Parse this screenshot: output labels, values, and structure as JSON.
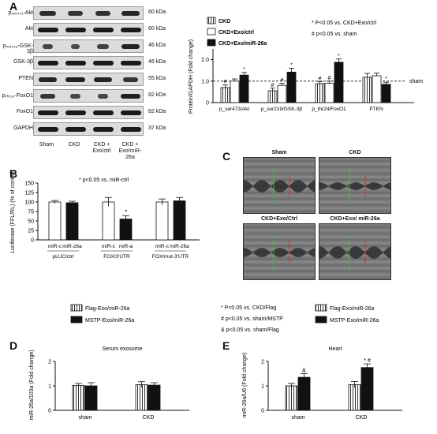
{
  "panel_labels": {
    "a": "A",
    "b": "B",
    "c": "C",
    "d": "D",
    "e": "E"
  },
  "western_blot": {
    "rows": [
      {
        "label": "pₛₑᵣ₄₇₃-Akt",
        "kda": "60 kDa"
      },
      {
        "label": "Akt",
        "kda": "60 kDa"
      },
      {
        "label": "pₛₑᵣ₂₁₉-GSK-3β",
        "kda": "46 kDa"
      },
      {
        "label": "GSK-3β",
        "kda": "46 kDa"
      },
      {
        "label": "PTEN",
        "kda": "55 kDa"
      },
      {
        "label": "pₜₕᵣ₂₄-FoxO1",
        "kda": "82 kDa"
      },
      {
        "label": "FoxO1",
        "kda": "82 kDa"
      },
      {
        "label": "GAPDH",
        "kda": "37 kDa"
      }
    ],
    "lanes": [
      "Sham",
      "CKD",
      "CKD + Exo/ctrl",
      "CKD + Exo/miR-26a"
    ]
  },
  "chart_data": [
    {
      "id": "A-bar",
      "type": "bar",
      "ylabel": "Protein/GAPDH (Fold change)",
      "ylim": [
        0,
        2.5
      ],
      "yticks": [
        "0",
        "1.0",
        "2.0"
      ],
      "categories": [
        "p_ser473/Akt",
        "p_ser219/GSK-3β",
        "p_thr24/FoxO1",
        "PTEN"
      ],
      "series": [
        {
          "name": "CKD",
          "fill": "hatched",
          "values": [
            0.7,
            0.55,
            0.88,
            1.18
          ],
          "err": [
            0.12,
            0.12,
            0.1,
            0.18
          ]
        },
        {
          "name": "CKD+Exo/ctrl",
          "fill": "white",
          "values": [
            1.0,
            0.8,
            0.9,
            1.25
          ],
          "err": [
            0.1,
            0.1,
            0.1,
            0.12
          ]
        },
        {
          "name": "CKD+Exo/miR-26a",
          "fill": "black",
          "values": [
            1.28,
            1.42,
            1.88,
            0.85
          ],
          "err": [
            0.12,
            0.18,
            0.15,
            0.1
          ]
        }
      ],
      "sham_line": 1.0,
      "sham_label": "sham",
      "marks": [
        [
          "#",
          "#",
          "#",
          ""
        ],
        [
          "",
          "#",
          "#",
          ""
        ],
        [
          "*",
          "*",
          "*",
          "*"
        ]
      ],
      "legend_notes": [
        "* P<0.05 vs. CKD+Exo/ctrl",
        "# p<0.05 vs. sham"
      ]
    },
    {
      "id": "B",
      "type": "bar",
      "ylabel": "Luciferase (FFL/RL) (% of control)",
      "ylim": [
        0,
        150
      ],
      "yticks": [
        "0",
        "25",
        "50",
        "75",
        "100",
        "125",
        "150"
      ],
      "groups": [
        "pLUC/ctrl",
        "FOX/3'UTR",
        "FOX/mut-3'UTR"
      ],
      "categories": [
        "miR-c",
        "miR-26a",
        "miR-c",
        "miR-a",
        "miR-c",
        "miR-26a"
      ],
      "values": [
        100,
        98,
        100,
        55,
        100,
        103
      ],
      "err": [
        4,
        4,
        12,
        9,
        8,
        9
      ],
      "fills": [
        "white",
        "black",
        "white",
        "black",
        "white",
        "black"
      ],
      "marks": [
        "",
        "",
        "",
        "*",
        "",
        ""
      ],
      "note": "* p<0.05 vs. miR-ctrl"
    },
    {
      "id": "D",
      "type": "bar",
      "title": "Serum exosome",
      "ylabel": "miR-26a/103a (Fold change)",
      "ylim": [
        0,
        2
      ],
      "yticks": [
        "0",
        "1",
        "2"
      ],
      "categories": [
        "sham",
        "CKD"
      ],
      "series": [
        {
          "name": "Flag-Exo/miR-26a",
          "fill": "white",
          "values": [
            1.02,
            1.05
          ],
          "err": [
            0.08,
            0.12
          ]
        },
        {
          "name": "MSTP-Exo/miR-26a",
          "fill": "black",
          "values": [
            1.0,
            1.03
          ],
          "err": [
            0.13,
            0.1
          ]
        }
      ]
    },
    {
      "id": "E",
      "type": "bar",
      "title": "Heart",
      "ylabel": "miR-26a/U6 (Fold change)",
      "ylim": [
        0,
        2
      ],
      "yticks": [
        "0",
        "1",
        "2"
      ],
      "categories": [
        "sham",
        "CKD"
      ],
      "series": [
        {
          "name": "Flag-Exo/miR-26a",
          "fill": "white",
          "values": [
            1.0,
            1.05
          ],
          "err": [
            0.1,
            0.13
          ]
        },
        {
          "name": "MSTP-Exo/miR-26a",
          "fill": "black",
          "values": [
            1.35,
            1.75
          ],
          "err": [
            0.15,
            0.15
          ]
        }
      ],
      "marks": [
        [
          "",
          ""
        ],
        [
          "&",
          "* #"
        ]
      ],
      "notes": [
        "* P<0.05 vs. CKD/Flag",
        "# p<0.05 vs. sham/MSTP",
        "& p<0.05 vs. sham/Flag"
      ]
    }
  ],
  "echo": {
    "panels": [
      "Sham",
      "CKD",
      "CKD+Exo/Ctrl",
      "CKD+Exo/ miR-26a"
    ]
  },
  "legend_de": {
    "left": [
      "Flag-Exo/miR-26a",
      "MSTP-Exo/miR-26a"
    ],
    "right": [
      "Flag-Exo/miR-26a",
      "MSTP-Exo/miR-26a"
    ]
  }
}
